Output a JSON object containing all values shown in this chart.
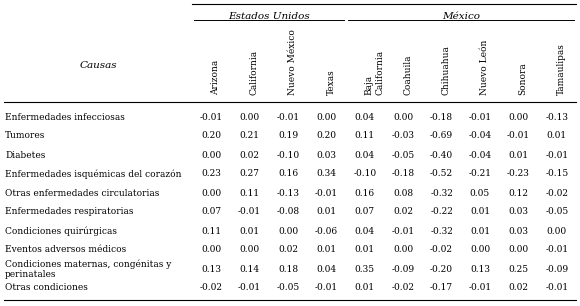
{
  "group1_label": "Estados Unidos",
  "group2_label": "México",
  "col_headers": [
    "Arizona",
    "California",
    "Nuevo México",
    "Texas",
    "Baja\nCalifornia",
    "Coahuila",
    "Chihuahua",
    "Nuevo León",
    "Sonora",
    "Tamaulipas"
  ],
  "row_labels": [
    "Enfermedades infecciosas",
    "Tumores",
    "Diabetes",
    "Enfermedades isquémicas del corazón",
    "Otras enfermedades circulatorias",
    "Enfermedades respiratorias",
    "Condiciones quirúrgicas",
    "Eventos adversos médicos",
    "Condiciones maternas, congénitas y\nperinatales",
    "Otras condiciones"
  ],
  "data": [
    [
      -0.01,
      0.0,
      -0.01,
      0.0,
      0.04,
      0.0,
      -0.18,
      -0.01,
      0.0,
      -0.13
    ],
    [
      0.2,
      0.21,
      0.19,
      0.2,
      0.11,
      -0.03,
      -0.69,
      -0.04,
      -0.01,
      0.01
    ],
    [
      0.0,
      0.02,
      -0.1,
      0.03,
      0.04,
      -0.05,
      -0.4,
      -0.04,
      0.01,
      -0.01
    ],
    [
      0.23,
      0.27,
      0.16,
      0.34,
      -0.1,
      -0.18,
      -0.52,
      -0.21,
      -0.23,
      -0.15
    ],
    [
      0.0,
      0.11,
      -0.13,
      -0.01,
      0.16,
      0.08,
      -0.32,
      0.05,
      0.12,
      -0.02
    ],
    [
      0.07,
      -0.01,
      -0.08,
      0.01,
      0.07,
      0.02,
      -0.22,
      0.01,
      0.03,
      -0.05
    ],
    [
      0.11,
      0.01,
      0.0,
      -0.06,
      0.04,
      -0.01,
      -0.32,
      0.01,
      0.03,
      0.0
    ],
    [
      0.0,
      0.0,
      0.02,
      0.01,
      0.01,
      0.0,
      -0.02,
      0.0,
      0.0,
      -0.01
    ],
    [
      0.13,
      0.14,
      0.18,
      0.04,
      0.35,
      -0.09,
      -0.2,
      0.13,
      0.25,
      -0.09
    ],
    [
      -0.02,
      -0.01,
      -0.05,
      -0.01,
      0.01,
      -0.02,
      -0.17,
      -0.01,
      0.02,
      -0.01
    ]
  ],
  "group1_cols": 4,
  "group2_cols": 6,
  "background_color": "#ffffff",
  "font_size": 6.5,
  "header_font_size": 7.5
}
